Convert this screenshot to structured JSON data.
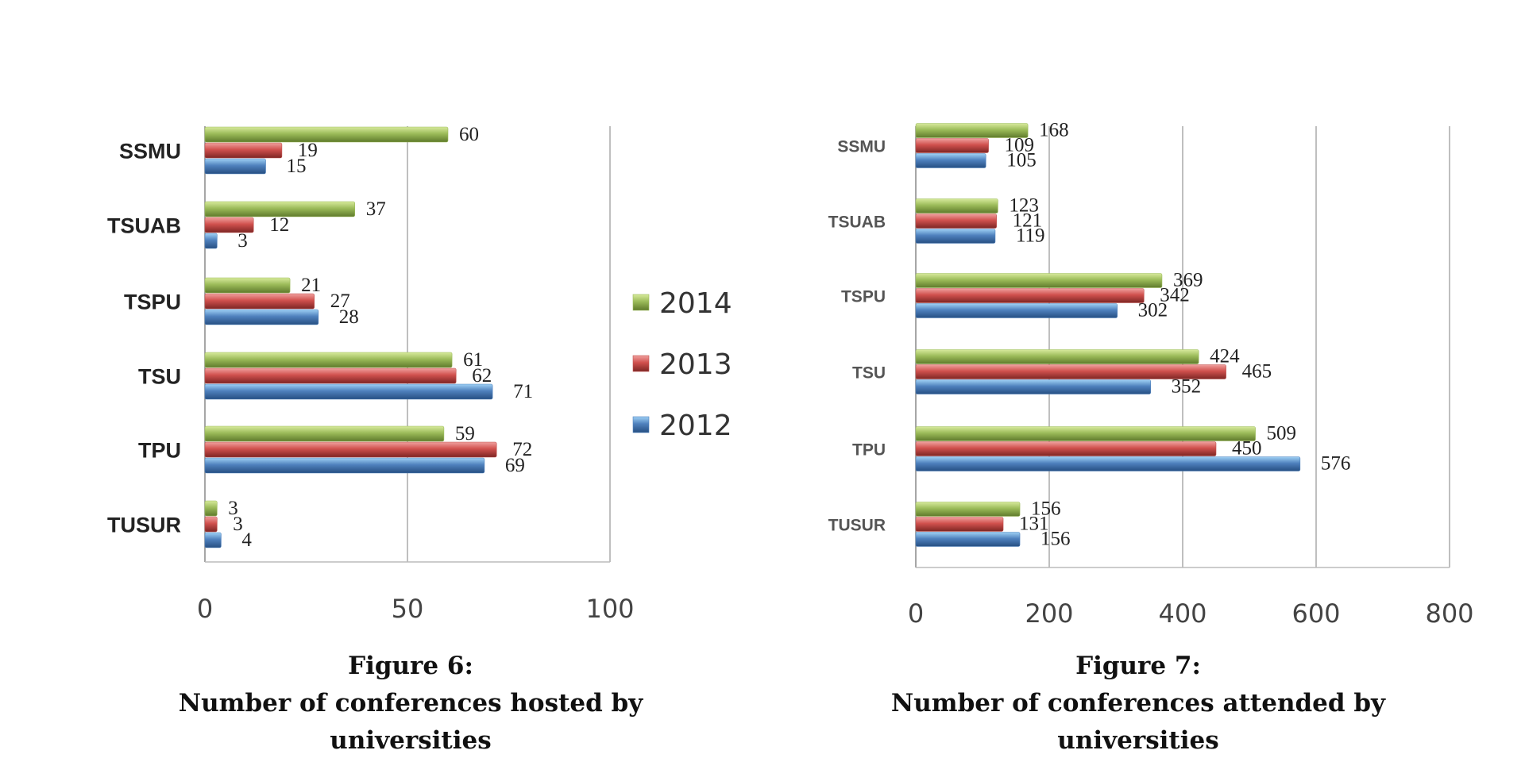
{
  "colors": {
    "2014": "#9bbb59",
    "2013": "#c0504d",
    "2012": "#4f81bd"
  },
  "legend": [
    "2014",
    "2013",
    "2012"
  ],
  "chart_data": [
    {
      "type": "bar",
      "orientation": "horizontal",
      "caption_label": "Figure 6:",
      "caption_text_1": "Number of conferences hosted by",
      "caption_text_2": "universities",
      "categories": [
        "SSMU",
        "TSUAB",
        "TSPU",
        "TSU",
        "TPU",
        "TUSUR"
      ],
      "series": [
        {
          "name": "2014",
          "values": [
            60,
            37,
            21,
            61,
            59,
            3
          ]
        },
        {
          "name": "2013",
          "values": [
            19,
            12,
            27,
            62,
            72,
            3
          ]
        },
        {
          "name": "2012",
          "values": [
            15,
            3,
            28,
            71,
            69,
            4
          ]
        }
      ],
      "xlim": [
        0,
        100
      ],
      "xticks": [
        "0",
        "50",
        "100"
      ],
      "grid": true,
      "legend_position": "right"
    },
    {
      "type": "bar",
      "orientation": "horizontal",
      "caption_label": "Figure 7:",
      "caption_text_1": "Number of conferences attended by",
      "caption_text_2": "universities",
      "categories": [
        "SSMU",
        "TSUAB",
        "TSPU",
        "TSU",
        "TPU",
        "TUSUR"
      ],
      "series": [
        {
          "name": "2014",
          "values": [
            168,
            123,
            369,
            424,
            509,
            156
          ]
        },
        {
          "name": "2013",
          "values": [
            109,
            121,
            342,
            465,
            450,
            131
          ]
        },
        {
          "name": "2012",
          "values": [
            105,
            119,
            302,
            352,
            576,
            156
          ]
        }
      ],
      "xlim": [
        0,
        800
      ],
      "xticks": [
        "0",
        "200",
        "400",
        "600",
        "800"
      ],
      "grid": true
    }
  ]
}
